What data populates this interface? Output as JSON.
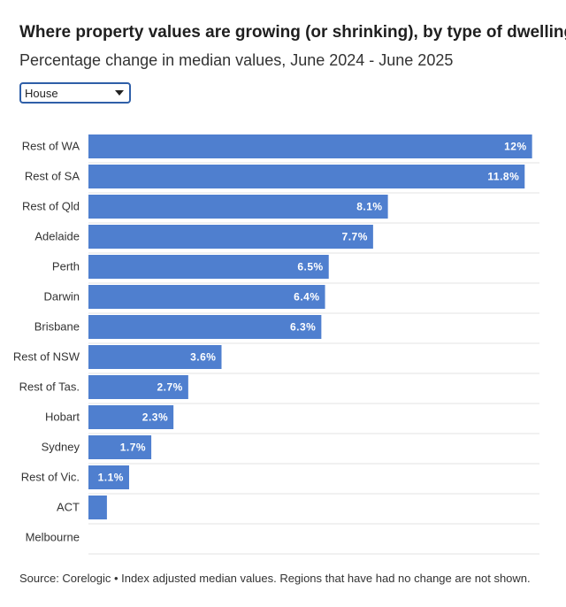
{
  "header": {
    "title": "Where property values are growing (or shrinking), by type of dwelling",
    "subtitle": "Percentage change in median values, June 2024 - June 2025"
  },
  "filter": {
    "selected": "House"
  },
  "chart_data": {
    "type": "bar",
    "orientation": "horizontal",
    "categories": [
      "Rest of WA",
      "Rest of SA",
      "Rest of Qld",
      "Adelaide",
      "Perth",
      "Darwin",
      "Brisbane",
      "Rest of NSW",
      "Rest of Tas.",
      "Hobart",
      "Sydney",
      "Rest of Vic.",
      "ACT",
      "Melbourne"
    ],
    "values": [
      12,
      11.8,
      8.1,
      7.7,
      6.5,
      6.4,
      6.3,
      3.6,
      2.7,
      2.3,
      1.7,
      1.1,
      0.5,
      0
    ],
    "value_labels": [
      "12%",
      "11.8%",
      "8.1%",
      "7.7%",
      "6.5%",
      "6.4%",
      "6.3%",
      "3.6%",
      "2.7%",
      "2.3%",
      "1.7%",
      "1.1%",
      "",
      ""
    ],
    "xlim": [
      0,
      12.2
    ],
    "bar_color": "#4f7fcf",
    "grid": true
  },
  "footer": {
    "source": "Source: Corelogic • Index adjusted median values. Regions that have had no change are not shown."
  }
}
